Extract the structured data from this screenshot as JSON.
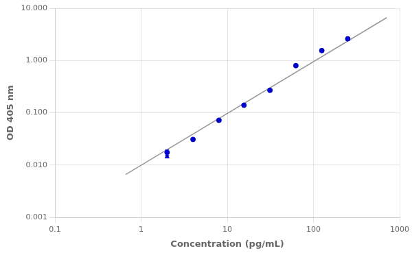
{
  "chart_data": {
    "type": "scatter",
    "xlabel": "Concentration (pg/mL)",
    "ylabel": "OD 405 nm",
    "log": true,
    "grid": true,
    "xlim": [
      0.1,
      1000
    ],
    "ylim": [
      0.001,
      10
    ],
    "xticks": [
      0.1,
      1,
      10,
      100,
      1000
    ],
    "yticks": [
      {
        "value": 0.001,
        "label": "0.001"
      },
      {
        "value": 0.01,
        "label": "0.010"
      },
      {
        "value": 0.1,
        "label": "0.100"
      },
      {
        "value": 1,
        "label": "1.000"
      },
      {
        "value": 10,
        "label": "10.000"
      }
    ],
    "series": [
      {
        "type": "line",
        "color": "#999999",
        "line_style": "solid",
        "x": [
          0.6606934480075959,
          707.9457843841379
        ],
        "values": [
          0.006606934480075959,
          6.606934480075959
        ]
      },
      {
        "type": "scatter",
        "color": "#0000CC",
        "marker": [
          "circle",
          "triangle",
          "circle",
          "circle",
          "circle",
          "circle",
          "circle",
          "circle",
          "circle"
        ],
        "x": [
          2.0,
          2.0,
          4.0,
          8.0,
          15.6,
          31.25,
          62.5,
          125.0,
          250.0
        ],
        "values": [
          0.0175,
          0.0145,
          0.031,
          0.072,
          0.14,
          0.27,
          0.8,
          1.55,
          2.6
        ],
        "y_err": [
          0.002,
          0.0,
          0.0,
          0.003,
          0.004,
          0.008,
          0.015,
          0.035,
          0.0
        ]
      }
    ]
  }
}
